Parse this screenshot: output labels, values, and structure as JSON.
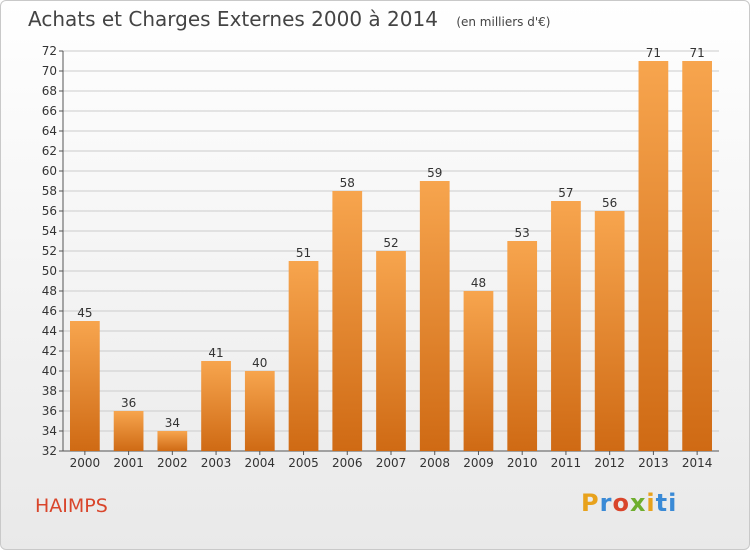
{
  "header": {
    "title": "Achats et Charges Externes 2000 à 2014",
    "subtitle": "(en milliers d'€)"
  },
  "footer": {
    "commune": "HAIMPS",
    "logo": [
      "P",
      "r",
      "o",
      "x",
      "i",
      "ti"
    ]
  },
  "colors": {
    "bar_light": "#f7a54e",
    "bar_dark": "#cf6a14",
    "grid": "#cccccc",
    "axis": "#555555",
    "text": "#333333",
    "commune": "#d9452b"
  },
  "chart_data": {
    "type": "bar",
    "title": "Achats et Charges Externes 2000 à 2014",
    "subtitle": "(en milliers d'€)",
    "categories": [
      "2000",
      "2001",
      "2002",
      "2003",
      "2004",
      "2005",
      "2006",
      "2007",
      "2008",
      "2009",
      "2010",
      "2011",
      "2012",
      "2013",
      "2014"
    ],
    "values": [
      45,
      36,
      34,
      41,
      40,
      51,
      58,
      52,
      59,
      48,
      53,
      57,
      56,
      71,
      71
    ],
    "ylim": [
      32,
      72
    ],
    "yticks": [
      32,
      34,
      36,
      38,
      40,
      42,
      44,
      46,
      48,
      50,
      52,
      54,
      56,
      58,
      60,
      62,
      64,
      66,
      68,
      70,
      72
    ],
    "grid": true,
    "xlabel": "",
    "ylabel": ""
  }
}
